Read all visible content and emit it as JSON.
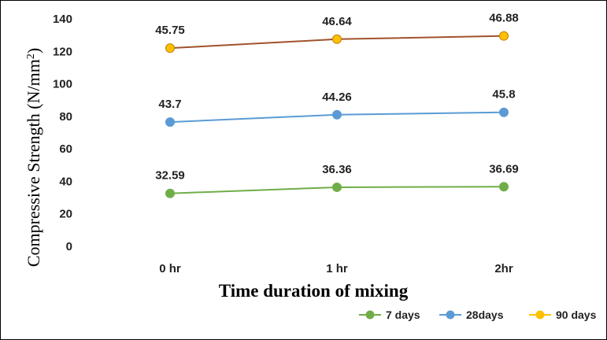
{
  "chart_data": {
    "type": "line",
    "title": "",
    "xlabel": "Time duration of mixing",
    "ylabel_main": "Compressive Strength (N/mm",
    "ylabel_sup": "2",
    "ylabel_close": ")",
    "ylim": [
      0,
      140
    ],
    "yticks": [
      0,
      20,
      40,
      60,
      80,
      100,
      120,
      140
    ],
    "categories": [
      "0 hr",
      "1 hr",
      "2hr"
    ],
    "grid": false,
    "legend_position": "bottom-right",
    "series": [
      {
        "name": "7 days",
        "color": "#70ad47",
        "plot_values": [
          32.59,
          36.36,
          36.69
        ],
        "labels": [
          "32.59",
          "36.36",
          "36.69"
        ]
      },
      {
        "name": "28days",
        "color": "#5b9bd5",
        "plot_values": [
          76.5,
          81,
          82.5
        ],
        "labels": [
          "43.7",
          "44.26",
          "45.8"
        ]
      },
      {
        "name": "90 days",
        "color": "#ffc000",
        "line_color": "#a0522d",
        "plot_values": [
          122,
          127.5,
          129.5
        ],
        "labels": [
          "45.75",
          "46.64",
          "46.88"
        ]
      }
    ]
  }
}
